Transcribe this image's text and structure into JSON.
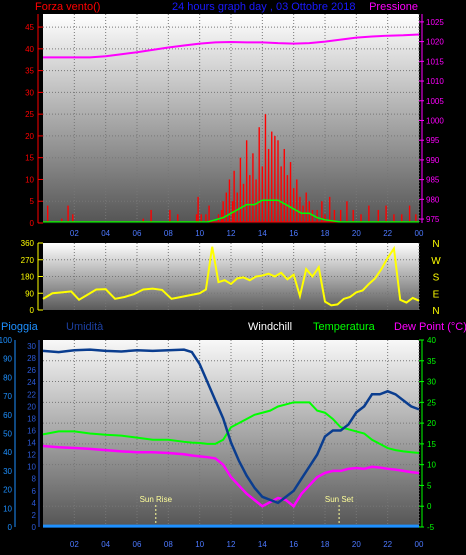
{
  "colors": {
    "wind": "#ff0000",
    "gust": "#00ff00",
    "pressure": "#ff00ff",
    "direction": "#ffff00",
    "rain": "#1e90ff",
    "humidity": "#0a3d8f",
    "windchill": "#ffffff",
    "temperature": "#00ff00",
    "dewpoint": "#ff00ff",
    "title": "#1a1aff"
  },
  "chart_data": [
    {
      "type": "line",
      "title": "24 hours graph day , 03 Ottobre 2018",
      "left_label": "Forza vento()",
      "right_label": "Pressione",
      "x_ticks": [
        "02",
        "04",
        "06",
        "08",
        "10",
        "12",
        "14",
        "16",
        "18",
        "20",
        "22",
        "00"
      ],
      "left_ticks": [
        0,
        5,
        10,
        15,
        20,
        25,
        30,
        35,
        40,
        45
      ],
      "right_ticks": [
        975,
        980,
        985,
        990,
        995,
        1000,
        1005,
        1010,
        1015,
        1020,
        1025
      ],
      "left_range": [
        0,
        48
      ],
      "right_range": [
        974,
        1027
      ],
      "x_range": [
        0,
        24
      ],
      "grid": true,
      "series": [
        {
          "key": "pressure",
          "axis": "right",
          "x": [
            0,
            1,
            2,
            3,
            4,
            5,
            6,
            7,
            8,
            9,
            10,
            11,
            12,
            13,
            14,
            15,
            16,
            17,
            18,
            19,
            20,
            21,
            22,
            23,
            24
          ],
          "values": [
            1016,
            1016,
            1016,
            1016,
            1016.3,
            1016.8,
            1017.3,
            1017.9,
            1018.5,
            1019,
            1019.5,
            1019.8,
            1019.9,
            1019.8,
            1019.8,
            1019.6,
            1019.5,
            1019.6,
            1020,
            1020.5,
            1021,
            1021.3,
            1021.5,
            1021.6,
            1021.8
          ]
        },
        {
          "key": "wind",
          "axis": "left",
          "style": "bars",
          "x": [
            0.3,
            1.2,
            1.6,
            1.9,
            6.4,
            6.9,
            8.1,
            8.6,
            9.8,
            9.9,
            10.1,
            10.4,
            10.6,
            11.2,
            11.4,
            11.5,
            11.7,
            11.9,
            12.1,
            12.2,
            12.4,
            12.6,
            12.8,
            13.0,
            13.2,
            13.4,
            13.6,
            13.8,
            14.0,
            14.2,
            14.4,
            14.6,
            14.8,
            15.0,
            15.2,
            15.4,
            15.6,
            15.8,
            16.0,
            16.2,
            16.4,
            16.6,
            16.8,
            17.0,
            17.2,
            17.5,
            17.8,
            18.0,
            18.3,
            18.6,
            19.0,
            19.4,
            19.8,
            20.3,
            20.8,
            21.4,
            21.9,
            22.4,
            22.9,
            23.4,
            23.8
          ],
          "values": [
            4,
            1,
            4,
            2,
            1,
            3,
            3,
            2,
            2,
            6,
            2,
            2,
            4,
            2,
            3,
            5,
            7,
            10,
            5,
            12,
            7,
            15,
            9,
            19,
            11,
            16,
            10,
            22,
            13,
            25,
            17,
            21,
            20,
            19,
            13,
            17,
            11,
            14,
            8,
            10,
            6,
            4,
            7,
            5,
            3,
            3,
            5,
            2,
            6,
            3,
            3,
            5,
            3,
            2,
            4,
            3,
            4,
            2,
            2,
            4,
            2
          ]
        },
        {
          "key": "gust",
          "axis": "left",
          "x": [
            0,
            1,
            2,
            3,
            4,
            5,
            6,
            7,
            8,
            9,
            10,
            10.5,
            11,
            11.5,
            12,
            12.5,
            13,
            13.5,
            14,
            14.5,
            15,
            15.5,
            16,
            16.5,
            17,
            17.5,
            18,
            19,
            20,
            21,
            22,
            23,
            24
          ],
          "values": [
            0,
            0,
            0,
            0,
            0,
            0,
            0,
            0,
            0,
            0,
            0,
            0,
            0.5,
            1,
            2,
            3,
            4,
            4,
            5,
            5,
            5,
            4,
            3,
            2,
            2,
            1,
            0.5,
            0,
            0,
            0,
            0,
            0,
            0
          ]
        }
      ]
    },
    {
      "type": "line",
      "left_ticks": [
        0,
        90,
        180,
        270,
        360
      ],
      "right_labels": [
        "N",
        "W",
        "S",
        "E",
        "N"
      ],
      "left_range": [
        0,
        360
      ],
      "x_range": [
        0,
        24
      ],
      "grid": true,
      "series": [
        {
          "key": "direction",
          "axis": "left",
          "x": [
            0,
            0.6,
            1.2,
            1.8,
            2.3,
            2.8,
            3.4,
            4.0,
            4.6,
            5.2,
            5.8,
            6.4,
            7.0,
            7.6,
            8.2,
            8.8,
            9.4,
            10.0,
            10.4,
            10.8,
            11.2,
            11.6,
            12.0,
            12.4,
            12.8,
            13.2,
            13.6,
            14.0,
            14.4,
            14.8,
            15.2,
            15.6,
            16.0,
            16.4,
            16.8,
            17.2,
            17.6,
            18.0,
            18.4,
            18.8,
            19.2,
            19.6,
            20.0,
            20.4,
            20.8,
            21.2,
            21.6,
            22.0,
            22.4,
            22.8,
            23.2,
            23.6,
            24.0
          ],
          "values": [
            60,
            90,
            95,
            100,
            55,
            80,
            110,
            112,
            60,
            70,
            85,
            110,
            115,
            108,
            60,
            70,
            80,
            90,
            110,
            340,
            150,
            160,
            140,
            170,
            175,
            160,
            180,
            185,
            195,
            180,
            200,
            165,
            190,
            75,
            220,
            180,
            230,
            45,
            25,
            30,
            60,
            70,
            95,
            105,
            140,
            170,
            220,
            280,
            330,
            55,
            40,
            65,
            50
          ]
        }
      ]
    },
    {
      "type": "line",
      "left_labels": [
        "Pioggia",
        "Umidità"
      ],
      "center_label": "Windchill",
      "right_labels": [
        "Temperatura",
        "Dew Point (°C)"
      ],
      "rain_ticks": [
        0,
        10,
        20,
        30,
        40,
        50,
        60,
        70,
        80,
        90,
        100
      ],
      "hum_ticks": [
        0,
        2,
        4,
        6,
        8,
        10,
        12,
        14,
        16,
        18,
        20,
        22,
        24,
        26,
        28,
        30
      ],
      "temp_ticks": [
        -5,
        0,
        5,
        10,
        15,
        20,
        25,
        30,
        35,
        40
      ],
      "temp_range": [
        -5,
        40
      ],
      "hum_range": [
        0,
        31
      ],
      "x_range": [
        0,
        24
      ],
      "annotations": [
        {
          "text": "Sun Rise",
          "x": 7.2
        },
        {
          "text": "Sun Set",
          "x": 18.9
        }
      ],
      "grid": true,
      "series": [
        {
          "key": "rain",
          "axis": "temp",
          "x": [
            0,
            24
          ],
          "values": [
            -4.8,
            -4.8
          ]
        },
        {
          "key": "humidity",
          "axis": "hum",
          "x": [
            0,
            1,
            2,
            3,
            4,
            5,
            6,
            7,
            8,
            9,
            9.5,
            10,
            10.5,
            11,
            11.5,
            12,
            12.5,
            13,
            13.5,
            14,
            14.5,
            15,
            15.5,
            16,
            16.5,
            17,
            17.5,
            18,
            18.5,
            19,
            19.5,
            20,
            20.5,
            21,
            21.5,
            22,
            22.5,
            23,
            23.5,
            24
          ],
          "values": [
            29.2,
            29,
            29.3,
            29.4,
            29.2,
            29.1,
            29.3,
            29.2,
            29.3,
            29.4,
            29,
            27,
            24,
            21,
            18,
            14,
            11,
            8.5,
            6.5,
            5,
            4.5,
            4,
            5,
            6,
            8,
            10,
            12,
            15,
            16,
            16,
            17,
            19,
            20,
            22,
            22,
            22.5,
            22,
            21,
            20,
            19.5
          ]
        },
        {
          "key": "temperature",
          "axis": "temp",
          "x": [
            0,
            1,
            2,
            3,
            4,
            5,
            6,
            7,
            8,
            9,
            9.5,
            10,
            10.5,
            11,
            11.5,
            12,
            12.5,
            13,
            13.5,
            14,
            14.5,
            15,
            15.5,
            16,
            16.5,
            17,
            17.5,
            18,
            18.5,
            19,
            19.5,
            20,
            20.5,
            21,
            21.5,
            22,
            22.5,
            23,
            23.5,
            24
          ],
          "values": [
            17.3,
            18,
            18,
            17.5,
            17.2,
            17,
            16.5,
            16,
            16,
            15.5,
            15.3,
            15.2,
            15,
            15,
            16,
            19,
            20,
            21,
            22,
            22.5,
            23,
            24,
            24.5,
            25,
            25,
            25,
            23,
            22.5,
            21,
            19,
            18.5,
            18,
            17.5,
            16,
            15,
            14,
            13.5,
            13.2,
            13,
            12.8
          ]
        },
        {
          "key": "dewpoint",
          "axis": "temp",
          "x": [
            0,
            1,
            2,
            3,
            4,
            5,
            6,
            7,
            8,
            9,
            9.5,
            10,
            10.5,
            11,
            11.5,
            12,
            12.5,
            13,
            13.5,
            14,
            14.5,
            15,
            15.5,
            16,
            16.5,
            17,
            17.5,
            18,
            18.5,
            19,
            19.5,
            20,
            20.5,
            21,
            21.5,
            22,
            22.5,
            23,
            23.5,
            24
          ],
          "values": [
            14.5,
            14.2,
            14,
            13.8,
            13.5,
            13.2,
            13,
            13,
            12.8,
            12.5,
            12.2,
            12,
            11.8,
            11.5,
            10,
            7,
            5,
            3,
            1.5,
            0,
            1,
            2,
            1.5,
            0,
            3,
            5,
            7,
            8,
            8.5,
            8.5,
            9,
            9.2,
            9,
            9.5,
            9.3,
            9,
            8.8,
            8.5,
            8.2,
            8
          ]
        }
      ]
    }
  ]
}
